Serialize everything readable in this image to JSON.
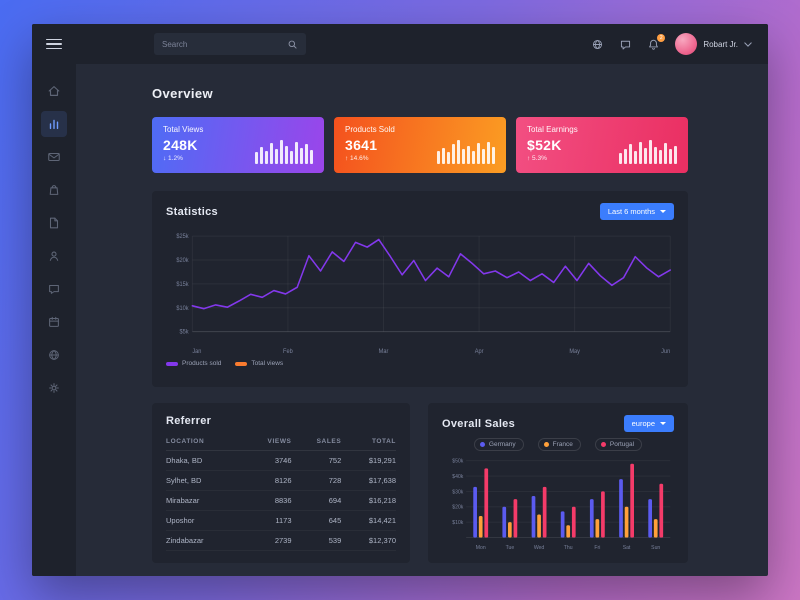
{
  "topbar": {
    "search_placeholder": "Search",
    "user_name": "Robart Jr.",
    "bell_badge": "2"
  },
  "sidebar": {
    "items": [
      {
        "icon": "home"
      },
      {
        "icon": "analytics",
        "active": true
      },
      {
        "icon": "mail"
      },
      {
        "icon": "shop"
      },
      {
        "icon": "orders"
      },
      {
        "icon": "profile"
      },
      {
        "icon": "chat"
      },
      {
        "icon": "calendar"
      },
      {
        "icon": "browser"
      },
      {
        "icon": "settings"
      }
    ]
  },
  "page": {
    "title": "Overview"
  },
  "stat_cards": [
    {
      "label": "Total Views",
      "value": "248K",
      "delta": "↓ 1.2%",
      "gradient": [
        "#4e6cf5",
        "#9b45ea"
      ],
      "spark": [
        0.45,
        0.7,
        0.5,
        0.85,
        0.6,
        1.0,
        0.75,
        0.5,
        0.9,
        0.65,
        0.8,
        0.55
      ]
    },
    {
      "label": "Products Sold",
      "value": "3641",
      "delta": "↑ 14.6%",
      "gradient": [
        "#f4511e",
        "#fb9d23"
      ],
      "spark": [
        0.5,
        0.65,
        0.45,
        0.8,
        1.0,
        0.6,
        0.75,
        0.5,
        0.85,
        0.6,
        0.9,
        0.7
      ]
    },
    {
      "label": "Total Earnings",
      "value": "$52K",
      "delta": "↑ 5.3%",
      "gradient": [
        "#f24f82",
        "#ea2f62"
      ],
      "spark": [
        0.4,
        0.6,
        0.8,
        0.5,
        0.9,
        0.65,
        1.0,
        0.7,
        0.55,
        0.85,
        0.6,
        0.75
      ]
    }
  ],
  "statistics": {
    "title": "Statistics",
    "filter_label": "Last 6 months",
    "legend": [
      {
        "label": "Products sold",
        "color": "#8338ec"
      },
      {
        "label": "Total views",
        "color": "#f97b2f"
      }
    ]
  },
  "referrer": {
    "title": "Referrer",
    "columns": [
      "LOCATION",
      "VIEWS",
      "SALES",
      "TOTAL"
    ],
    "rows": [
      [
        "Dhaka, BD",
        "3746",
        "752",
        "$19,291"
      ],
      [
        "Sylhet, BD",
        "8126",
        "728",
        "$17,638"
      ],
      [
        "Mirabazar",
        "8836",
        "694",
        "$16,218"
      ],
      [
        "Uposhor",
        "1173",
        "645",
        "$14,421"
      ],
      [
        "Zindabazar",
        "2739",
        "539",
        "$12,370"
      ]
    ]
  },
  "overall_sales": {
    "title": "Overall Sales",
    "filter_label": "europe"
  },
  "chart_data": [
    {
      "type": "line",
      "title": "Statistics",
      "x_ticks": [
        "Jan",
        "Feb",
        "Mar",
        "Apr",
        "May",
        "Jun"
      ],
      "y_ticks": [
        "$25k",
        "$20k",
        "$15k",
        "$10k",
        "$5k"
      ],
      "y_tick_values": [
        25,
        20,
        15,
        10,
        5
      ],
      "ylim": [
        5,
        25
      ],
      "grid": true,
      "legend_position": "bottom-left",
      "series": [
        {
          "name": "Products sold",
          "color": "#8338ec",
          "values": [
            10.4,
            9.8,
            10.6,
            10.1,
            11.4,
            12.8,
            12.2,
            13.6,
            12.9,
            14.3,
            20.9,
            17.7,
            21.7,
            19.7,
            23.7,
            22.7,
            24.3,
            20.7,
            16.9,
            19.9,
            15.7,
            18.3,
            16.5,
            21.3,
            19.3,
            17.1,
            17.7,
            16.3,
            17.5,
            15.7,
            17.1,
            15.3,
            18.7,
            15.7,
            19.3,
            16.7,
            14.7,
            16.3,
            20.7,
            18.3,
            16.5,
            17.9
          ]
        }
      ]
    },
    {
      "type": "bar",
      "title": "Overall Sales",
      "categories": [
        "Mon",
        "Tue",
        "Wed",
        "Thu",
        "Fri",
        "Sat",
        "Sun"
      ],
      "y_ticks": [
        "$50k",
        "$40k",
        "$30k",
        "$20k",
        "$10k"
      ],
      "y_tick_values": [
        50,
        40,
        30,
        20,
        10
      ],
      "ylim": [
        0,
        50
      ],
      "grid": true,
      "legend_position": "top-center",
      "series": [
        {
          "name": "Germany",
          "color": "#5b5bf0",
          "values": [
            33,
            20,
            27,
            17,
            25,
            38,
            25
          ]
        },
        {
          "name": "France",
          "color": "#ffa03a",
          "values": [
            14,
            10,
            15,
            8,
            12,
            20,
            12
          ]
        },
        {
          "name": "Portugal",
          "color": "#f43b69",
          "values": [
            45,
            25,
            33,
            20,
            30,
            48,
            35
          ]
        }
      ]
    }
  ]
}
